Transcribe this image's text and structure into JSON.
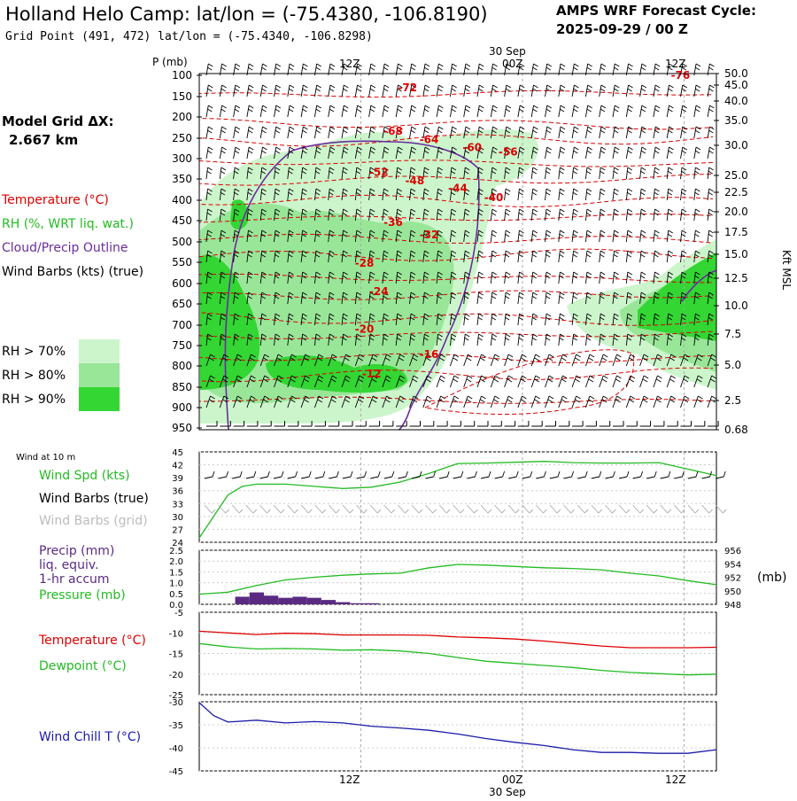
{
  "header": {
    "title": "Holland Helo Camp:  lat/lon = (-75.4380, -106.8190)",
    "subtitle": "Grid Point (491, 472) lat/lon = (-75.4340, -106.8298)",
    "cycle_line1": "AMPS WRF Forecast Cycle:",
    "cycle_line2": "2025-09-29 / 00  Z"
  },
  "model_grid": {
    "line1": "Model Grid ΔX:",
    "line2": "2.667 km"
  },
  "cross_section_legend": {
    "temperature": "Temperature (°C)",
    "rh": "RH (%, WRT liq. wat.)",
    "cloud": "Cloud/Precip Outline",
    "wind": "Wind Barbs (kts) (true)",
    "rh_levels": [
      {
        "label": "RH > 70%",
        "color": "#ccf5cc"
      },
      {
        "label": "RH > 80%",
        "color": "#99e699"
      },
      {
        "label": "RH > 90%",
        "color": "#33d633"
      }
    ]
  },
  "time_axis": {
    "top_labels": [
      "12Z",
      "00Z",
      "12Z"
    ],
    "date_label": "30 Sep",
    "bottom_labels": [
      "12Z",
      "00Z",
      "12Z"
    ]
  },
  "pressure_axis": {
    "title": "P (mb)",
    "ticks": [
      "100",
      "150",
      "200",
      "250",
      "300",
      "350",
      "400",
      "450",
      "500",
      "550",
      "600",
      "650",
      "700",
      "750",
      "800",
      "850",
      "900",
      "950"
    ]
  },
  "height_axis": {
    "title": "Kft MSL",
    "ticks": [
      "50.0",
      "45.0",
      "40.0",
      "35.0",
      "30.0",
      "25.0",
      "22.5",
      "20.0",
      "17.5",
      "15.0",
      "12.5",
      "10.0",
      "7.5",
      "5.0",
      "2.5",
      "0.68"
    ]
  },
  "wind_panel": {
    "title": "Wind at 10 m",
    "spd_label": "Wind Spd (kts)",
    "barbs_true_label": "Wind Barbs (true)",
    "barbs_grid_label": "Wind Barbs (grid)",
    "yticks": [
      "45",
      "42",
      "39",
      "36",
      "33",
      "30",
      "27",
      "24"
    ]
  },
  "precip_panel": {
    "precip_label1": "Precip (mm)",
    "precip_label2": "liq. equiv.",
    "precip_label3": "1-hr accum",
    "pressure_label": "Pressure (mb)",
    "left_ticks": [
      "2.5",
      "2.0",
      "1.5",
      "1.0",
      "0.5",
      "0.0"
    ],
    "right_ticks": [
      "956",
      "954",
      "952",
      "950",
      "948"
    ],
    "right_unit": "(mb)"
  },
  "temp_panel": {
    "temp_label": "Temperature (°C)",
    "dew_label": "Dewpoint (°C)",
    "yticks": [
      "-5",
      "-10",
      "-15",
      "-20",
      "-25"
    ]
  },
  "chill_panel": {
    "label": "Wind Chill T (°C)",
    "yticks": [
      "-30",
      "-35",
      "-40",
      "-45"
    ]
  },
  "colors": {
    "temperature": "#dd0000",
    "rh_line": "#22bb22",
    "cloud": "#6a2c9e",
    "precip_bar": "#5a2a82",
    "wind_chill": "#1a1aaa",
    "grid": "#aaaaaa"
  },
  "chart_data": [
    {
      "type": "line",
      "name": "Vertical cross-section (time-height)",
      "x_hours_from_cycle": [
        0,
        36
      ],
      "y_pressure_mb": [
        100,
        950
      ],
      "isotherm_labels": [
        {
          "t_hours": 33.5,
          "p_mb": 108,
          "value": -76
        },
        {
          "t_hours": 14.5,
          "p_mb": 138,
          "value": -72
        },
        {
          "t_hours": 13.5,
          "p_mb": 242,
          "value": -68
        },
        {
          "t_hours": 16.0,
          "p_mb": 262,
          "value": -64
        },
        {
          "t_hours": 19.0,
          "p_mb": 282,
          "value": -60
        },
        {
          "t_hours": 21.5,
          "p_mb": 292,
          "value": -56
        },
        {
          "t_hours": 12.5,
          "p_mb": 342,
          "value": -52
        },
        {
          "t_hours": 15.0,
          "p_mb": 362,
          "value": -48
        },
        {
          "t_hours": 18.0,
          "p_mb": 380,
          "value": -44
        },
        {
          "t_hours": 20.5,
          "p_mb": 402,
          "value": -40
        },
        {
          "t_hours": 13.5,
          "p_mb": 462,
          "value": -36
        },
        {
          "t_hours": 16.0,
          "p_mb": 492,
          "value": -32
        },
        {
          "t_hours": 11.5,
          "p_mb": 560,
          "value": -28
        },
        {
          "t_hours": 12.5,
          "p_mb": 628,
          "value": -24
        },
        {
          "t_hours": 11.5,
          "p_mb": 718,
          "value": -20
        },
        {
          "t_hours": 16.0,
          "p_mb": 780,
          "value": -16
        },
        {
          "t_hours": 12.0,
          "p_mb": 827,
          "value": -12
        }
      ]
    },
    {
      "type": "line",
      "name": "10 m wind speed (kts)",
      "ylim": [
        24,
        45
      ],
      "x_hours": [
        0,
        1,
        2,
        3,
        4,
        6,
        8,
        10,
        12,
        14,
        16,
        18,
        20,
        22,
        24,
        26,
        28,
        30,
        32,
        34,
        36
      ],
      "values": [
        25,
        30,
        35,
        37,
        37.5,
        37.5,
        37,
        36.5,
        36.8,
        38,
        40,
        42.3,
        42.4,
        42.6,
        42.8,
        42.5,
        42.4,
        42.4,
        42.5,
        41,
        39.5
      ]
    },
    {
      "type": "bar",
      "name": "1-hr accumulated precip (mm)",
      "ylim": [
        0,
        2.5
      ],
      "x_hours": [
        3,
        4,
        5,
        6,
        7,
        8,
        9,
        10,
        11,
        12
      ],
      "values": [
        0.35,
        0.55,
        0.4,
        0.3,
        0.35,
        0.3,
        0.2,
        0.1,
        0.05,
        0.05
      ]
    },
    {
      "type": "line",
      "name": "Surface pressure (mb)",
      "ylim": [
        948,
        956
      ],
      "x_hours": [
        0,
        2,
        4,
        6,
        8,
        10,
        12,
        14,
        16,
        18,
        20,
        22,
        24,
        26,
        28,
        30,
        32,
        34,
        36
      ],
      "values": [
        949.5,
        949.8,
        950.8,
        951.6,
        952,
        952.3,
        952.5,
        952.6,
        953.4,
        953.9,
        953.8,
        953.6,
        953.4,
        953.3,
        953.1,
        952.6,
        952.2,
        951.5,
        950.9
      ]
    },
    {
      "type": "line",
      "name": "Temperature (°C)",
      "ylim": [
        -25,
        -5
      ],
      "x_hours": [
        0,
        2,
        4,
        6,
        8,
        10,
        12,
        14,
        16,
        18,
        20,
        22,
        24,
        26,
        28,
        30,
        32,
        34,
        36
      ],
      "values": [
        -9.6,
        -10,
        -10.4,
        -10.1,
        -10.2,
        -10.5,
        -10.5,
        -10.5,
        -10.6,
        -11.0,
        -11.2,
        -11.5,
        -12.0,
        -12.6,
        -13.2,
        -13.6,
        -13.6,
        -13.6,
        -13.5
      ]
    },
    {
      "type": "line",
      "name": "Dewpoint (°C)",
      "ylim": [
        -25,
        -5
      ],
      "x_hours": [
        0,
        2,
        4,
        6,
        8,
        10,
        12,
        14,
        16,
        18,
        20,
        22,
        24,
        26,
        28,
        30,
        32,
        34,
        36
      ],
      "values": [
        -12.6,
        -13.4,
        -13.9,
        -13.8,
        -13.9,
        -14.2,
        -14.1,
        -14.4,
        -15.0,
        -16.0,
        -16.9,
        -17.4,
        -17.9,
        -18.4,
        -19.1,
        -19.6,
        -19.9,
        -20.2,
        -20.0
      ]
    },
    {
      "type": "line",
      "name": "Wind chill (°C)",
      "ylim": [
        -45,
        -30
      ],
      "x_hours": [
        0,
        1,
        2,
        4,
        6,
        8,
        10,
        12,
        14,
        16,
        18,
        20,
        22,
        24,
        26,
        28,
        30,
        32,
        34,
        36
      ],
      "values": [
        -30.2,
        -33,
        -34.4,
        -34,
        -34.6,
        -34.3,
        -34.6,
        -35.3,
        -35.7,
        -36.2,
        -37.0,
        -38.0,
        -38.8,
        -39.5,
        -40.4,
        -41.0,
        -41.0,
        -41.2,
        -41.2,
        -40.4
      ]
    }
  ]
}
